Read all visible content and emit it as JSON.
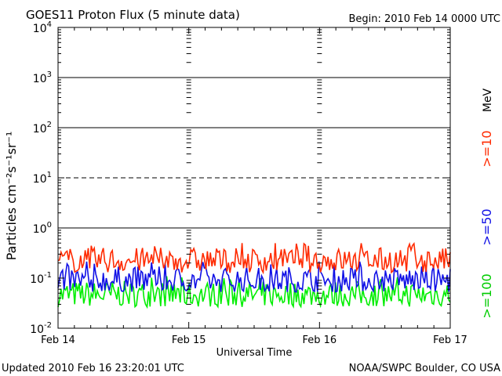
{
  "header": {
    "title": "GOES11 Proton Flux (5 minute data)",
    "begin": "Begin: 2010 Feb 14 0000 UTC"
  },
  "footer": {
    "updated": "Updated 2010 Feb 16 23:20:01 UTC",
    "source": "NOAA/SWPC Boulder, CO USA"
  },
  "chart_data": {
    "type": "line",
    "title": "GOES11 Proton Flux (5 minute data)",
    "xlabel": "Universal Time",
    "ylabel": "Particles cm⁻²s⁻¹sr⁻¹",
    "yscale": "log",
    "ylim": [
      0.01,
      10000
    ],
    "xlim": [
      0,
      3
    ],
    "x_tick_labels": [
      "Feb 14",
      "Feb 15",
      "Feb 16",
      "Feb 17"
    ],
    "y_tick_labels": [
      {
        "base": "10",
        "exp": "-2"
      },
      {
        "base": "10",
        "exp": "-1"
      },
      {
        "base": "10",
        "exp": "0"
      },
      {
        "base": "10",
        "exp": "1"
      },
      {
        "base": "10",
        "exp": "2"
      },
      {
        "base": "10",
        "exp": "3"
      },
      {
        "base": "10",
        "exp": "4"
      }
    ],
    "threshold_lines": [
      {
        "value": 1,
        "style": "solid"
      },
      {
        "value": 10,
        "style": "dashed"
      },
      {
        "value": 100,
        "style": "solid"
      },
      {
        "value": 1000,
        "style": "solid"
      }
    ],
    "grid": false,
    "unit_label": "MeV",
    "series": [
      {
        "name": ">=10",
        "color": "#ff2a00",
        "typical": 0.22,
        "min": 0.12,
        "max": 0.5
      },
      {
        "name": ">=50",
        "color": "#1010e6",
        "typical": 0.085,
        "min": 0.05,
        "max": 0.22
      },
      {
        "name": ">=100",
        "color": "#00ee00",
        "typical": 0.045,
        "min": 0.025,
        "max": 0.11
      }
    ]
  }
}
